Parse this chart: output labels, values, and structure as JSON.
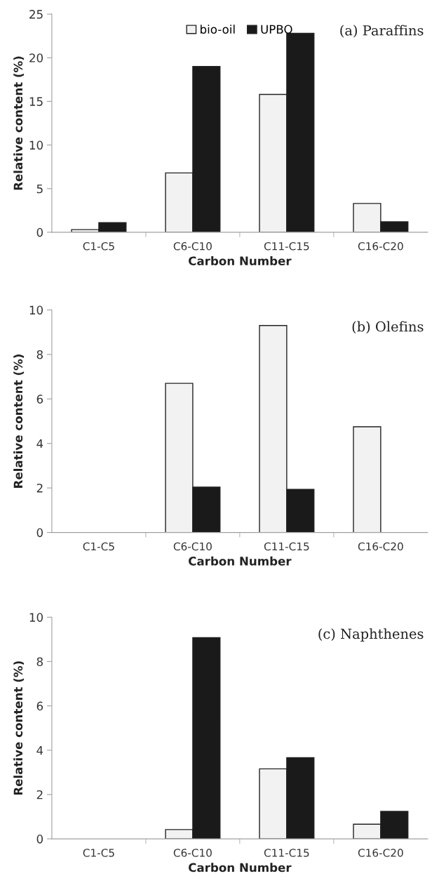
{
  "chart_data": [
    {
      "type": "bar",
      "categories": [
        "C1-C5",
        "C6-C10",
        "C11-C15",
        "C16-C20"
      ],
      "xlabel": "Carbon Number",
      "ylabel": "Relative content (%)",
      "annotations": [
        "(a) Paraffins"
      ],
      "ylim": [
        0,
        25
      ],
      "yticks": [
        0,
        5,
        10,
        15,
        20,
        25
      ],
      "grid": false,
      "legend": "top",
      "series": [
        {
          "name": "bio-oil",
          "color": "#f2f2f2",
          "values": [
            0.3,
            6.8,
            15.8,
            3.3
          ]
        },
        {
          "name": "UPBO",
          "color": "#1a1a1a",
          "values": [
            1.1,
            19.0,
            22.8,
            1.2
          ]
        }
      ]
    },
    {
      "type": "bar",
      "categories": [
        "C1-C5",
        "C6-C10",
        "C11-C15",
        "C16-C20"
      ],
      "xlabel": "Carbon Number",
      "ylabel": "Relative content (%)",
      "annotations": [
        "(b) Olefins"
      ],
      "ylim": [
        0,
        10
      ],
      "yticks": [
        0,
        2,
        4,
        6,
        8,
        10
      ],
      "grid": false,
      "legend": false,
      "series": [
        {
          "color": "#f2f2f2",
          "values": [
            null,
            6.7,
            9.3,
            4.75
          ]
        },
        {
          "color": "#1a1a1a",
          "values": [
            null,
            2.04,
            1.94,
            null
          ]
        }
      ]
    },
    {
      "type": "bar",
      "categories": [
        "C1-C5",
        "C6-C10",
        "C11-C15",
        "C16-C20"
      ],
      "xlabel": "Carbon Number",
      "ylabel": "Relative content (%)",
      "annotations": [
        "(c) Naphthenes"
      ],
      "ylim": [
        0,
        10
      ],
      "yticks": [
        0,
        2,
        4,
        6,
        8,
        10
      ],
      "grid": false,
      "legend": false,
      "series": [
        {
          "color": "#f2f2f2",
          "values": [
            null,
            0.42,
            3.16,
            0.66
          ]
        },
        {
          "color": "#1a1a1a",
          "values": [
            null,
            9.08,
            3.66,
            1.24
          ]
        }
      ]
    }
  ]
}
